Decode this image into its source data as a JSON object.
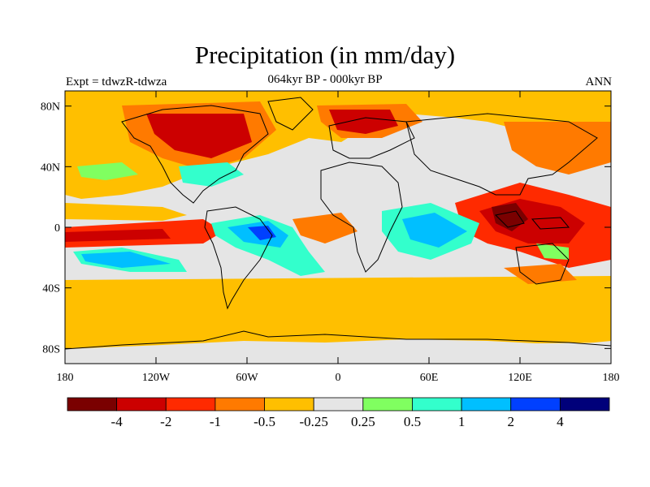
{
  "header": {
    "title": "Precipitation (in mm/day)",
    "subtitle": "064kyr BP - 000kyr BP",
    "left_label": "Expt = tdwzR-tdwza",
    "right_label": "ANN"
  },
  "map": {
    "projection": "cylindrical equidistant",
    "lat_ticks": [
      "80N",
      "40N",
      "0",
      "40S",
      "80S"
    ],
    "lon_ticks": [
      "180",
      "120W",
      "60W",
      "0",
      "60E",
      "120E",
      "180"
    ],
    "lat_values": [
      80,
      40,
      0,
      -40,
      -80
    ],
    "lon_values": [
      -180,
      -120,
      -60,
      0,
      60,
      120,
      180
    ],
    "lat_range": [
      -90,
      90
    ],
    "lon_range": [
      -180,
      180
    ],
    "background_color": "#e5e5e5",
    "coastline_color": "#000000"
  },
  "colorbar": {
    "labels": [
      "-4",
      "-2",
      "-1",
      "-0.5",
      "-0.25",
      "0.25",
      "0.5",
      "1",
      "2",
      "4"
    ],
    "colors": [
      "#7a0000",
      "#cc0000",
      "#ff2a00",
      "#ff7a00",
      "#ffbf00",
      "#e5e5e5",
      "#80ff60",
      "#33ffcc",
      "#00bfff",
      "#0040ff",
      "#00007a"
    ]
  }
}
